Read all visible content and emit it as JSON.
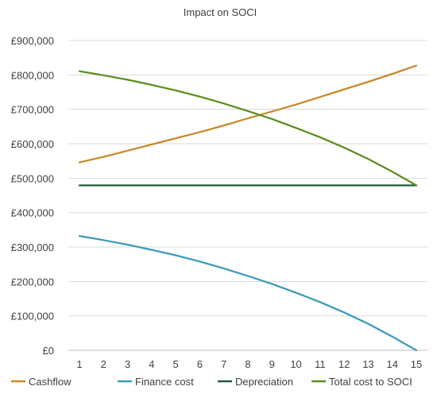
{
  "chart_data": {
    "type": "line",
    "title": "Impact on SOCI",
    "xlabel": "",
    "ylabel": "",
    "x": [
      1,
      2,
      3,
      4,
      5,
      6,
      7,
      8,
      9,
      10,
      11,
      12,
      13,
      14,
      15
    ],
    "x_tick_labels": [
      "1",
      "2",
      "3",
      "4",
      "5",
      "6",
      "7",
      "8",
      "9",
      "10",
      "11",
      "12",
      "13",
      "14",
      "15"
    ],
    "ylim": [
      0,
      900000
    ],
    "y_tick_values": [
      0,
      100000,
      200000,
      300000,
      400000,
      500000,
      600000,
      700000,
      800000,
      900000
    ],
    "y_tick_labels": [
      "£0",
      "£100,000",
      "£200,000",
      "£300,000",
      "£400,000",
      "£500,000",
      "£600,000",
      "£700,000",
      "£800,000",
      "£900,000"
    ],
    "grid": true,
    "legend_position": "bottom",
    "series": [
      {
        "name": "Cashflow",
        "color": "#c9892a",
        "values": [
          546000,
          562000,
          580000,
          598000,
          616000,
          634000,
          653000,
          674000,
          694000,
          714000,
          736000,
          758000,
          780000,
          803000,
          827000
        ]
      },
      {
        "name": "Finance cost",
        "color": "#3b9ab8",
        "values": [
          332000,
          320000,
          307000,
          292000,
          276000,
          258000,
          238000,
          216000,
          193000,
          167000,
          140000,
          110000,
          77000,
          40000,
          0
        ]
      },
      {
        "name": "Depreciation",
        "color": "#1f5c3a",
        "values": [
          479000,
          479000,
          479000,
          479000,
          479000,
          479000,
          479000,
          479000,
          479000,
          479000,
          479000,
          479000,
          479000,
          479000,
          479000
        ]
      },
      {
        "name": "Total cost to SOCI",
        "color": "#5a8f1e",
        "values": [
          811000,
          799000,
          786000,
          771000,
          755000,
          737000,
          717000,
          695000,
          672000,
          646000,
          619000,
          589000,
          556000,
          519000,
          479000
        ]
      }
    ]
  }
}
